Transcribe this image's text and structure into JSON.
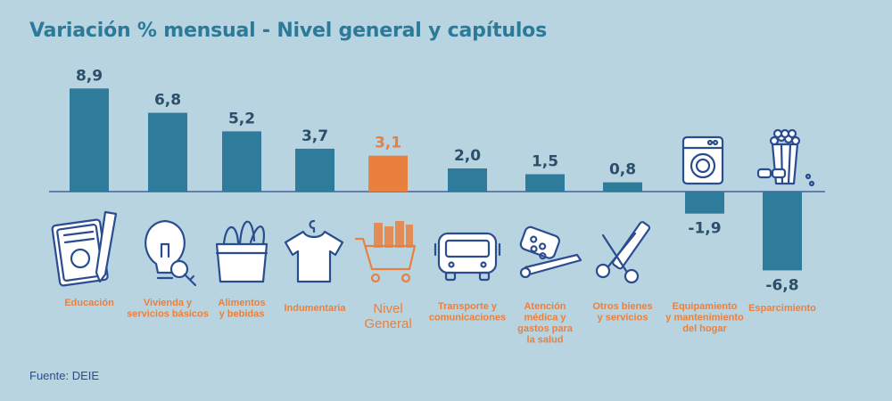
{
  "title": "Variación % mensual - Nivel general y capítulos",
  "source": "Fuente: DEIE",
  "colors": {
    "bar": "#2e7b9c",
    "highlight": "#e9803e",
    "label": "#e9803e",
    "icon": "#2a4d8f",
    "value": "#2b4f6a",
    "baseline": "#2a4d8f"
  },
  "chart_data": {
    "type": "bar",
    "title": "Variación % mensual - Nivel general y capítulos",
    "categories": [
      "Educación",
      "Vivienda y servicios básicos",
      "Alimentos y bebidas",
      "Indumentaria",
      "Nivel General",
      "Transporte y comunicaciones",
      "Atención médica y gastos para la salud",
      "Otros bienes y servicios",
      "Equipamiento y mantenimiento del hogar",
      "Esparcimiento"
    ],
    "category_lines": [
      [
        "Educación"
      ],
      [
        "Vivienda y",
        "servicios básicos"
      ],
      [
        "Alimentos",
        "y bebidas"
      ],
      [
        "Indumentaria"
      ],
      [
        "Nivel",
        "General"
      ],
      [
        "Transporte y",
        "comunicaciones"
      ],
      [
        "Atención",
        "médica y",
        "gastos para",
        "la salud"
      ],
      [
        "Otros bienes",
        "y servicios"
      ],
      [
        "Equipamiento",
        "y mantenimiento",
        "del hogar"
      ],
      [
        "Esparcimiento"
      ]
    ],
    "values": [
      8.9,
      6.8,
      5.2,
      3.7,
      3.1,
      2.0,
      1.5,
      0.8,
      -1.9,
      -6.8
    ],
    "value_labels": [
      "8,9",
      "6,8",
      "5,2",
      "3,7",
      "3,1",
      "2,0",
      "1,5",
      "0,8",
      "-1,9",
      "-6,8"
    ],
    "highlight_index": 4,
    "icons": [
      "notebook-icon",
      "lightbulb-key-icon",
      "grocery-bag-icon",
      "tshirt-icon",
      "shopping-cart-icon",
      "bus-icon",
      "pills-thermometer-icon",
      "scissors-comb-icon",
      "washing-machine-icon",
      "popcorn-icon"
    ],
    "ylim": [
      -6.8,
      8.9
    ],
    "grid": false,
    "legend": "none"
  }
}
